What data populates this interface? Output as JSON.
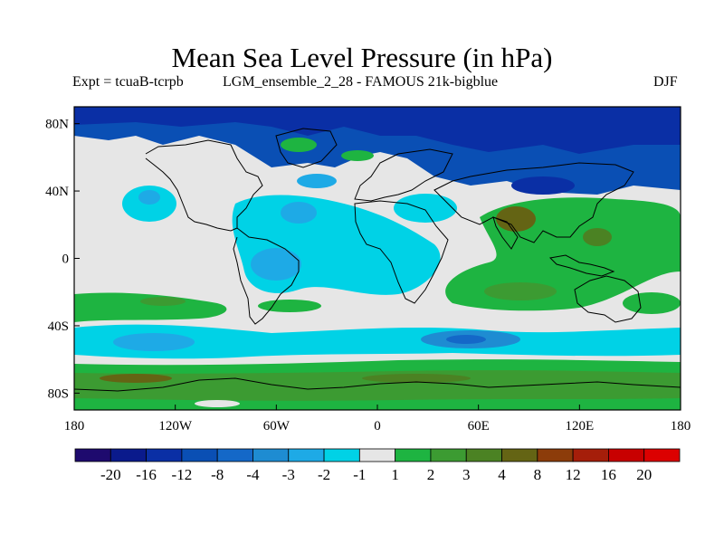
{
  "title": "Mean Sea Level Pressure (in hPa)",
  "expt_label": "Expt = tcuaB-tcrpb",
  "run_label": "LGM_ensemble_2_28 - FAMOUS 21k-bigblue",
  "season_label": "DJF",
  "map": {
    "lon_ticks": [
      "180",
      "120W",
      "60W",
      "0",
      "60E",
      "120E",
      "180"
    ],
    "lat_ticks": [
      "80N",
      "40N",
      "0",
      "40S",
      "80S"
    ],
    "fill_color": "#e6e6e6"
  },
  "colorbar": {
    "labels": [
      "-20",
      "-16",
      "-12",
      "-8",
      "-4",
      "-3",
      "-2",
      "-1",
      "1",
      "2",
      "3",
      "4",
      "8",
      "12",
      "16",
      "20"
    ],
    "colors": [
      "#1e0a6e",
      "#0a1a8c",
      "#0a2fa5",
      "#0a4fb4",
      "#1468c8",
      "#1e8cd2",
      "#1eaae6",
      "#00d2e6",
      "#e6e6e6",
      "#1eb441",
      "#3c9b32",
      "#4b8223",
      "#646414",
      "#8c3c0a",
      "#a51e0a",
      "#c80000",
      "#dc0000"
    ]
  }
}
